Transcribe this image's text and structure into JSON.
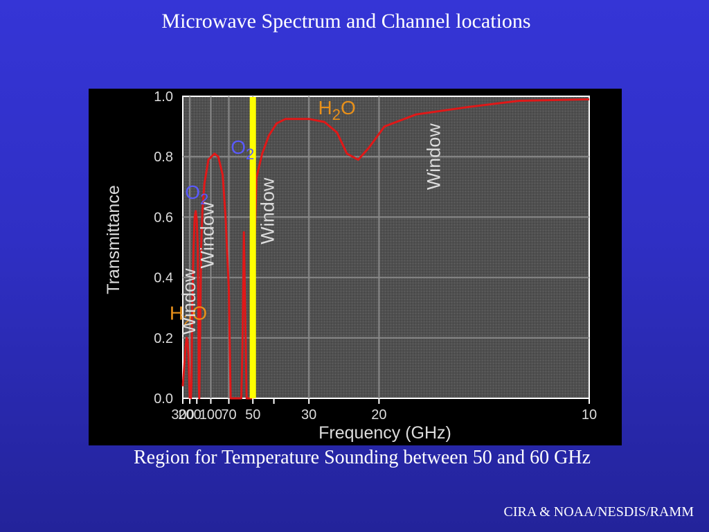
{
  "slide": {
    "title": "Microwave Spectrum and Channel locations",
    "caption": "Region for Temperature Sounding between 50 and 60 GHz",
    "credit": "CIRA & NOAA/NESDIS/RAMM"
  },
  "chart_data": {
    "type": "line",
    "xlabel": "Frequency (GHz)",
    "ylabel": "Transmittance",
    "x_scale": "reciprocal",
    "x_reversed": true,
    "xlim": [
      300,
      10
    ],
    "ylim": [
      0.0,
      1.0
    ],
    "grid": true,
    "x_ticks": [
      300,
      200,
      100,
      70,
      50,
      30,
      20,
      10
    ],
    "x_tick_labels": [
      "300",
      "200",
      "100",
      "70",
      "50",
      "30",
      "20",
      "10"
    ],
    "x_minor_ticks": [
      150,
      40
    ],
    "y_ticks": [
      0.0,
      0.2,
      0.4,
      0.6,
      0.8,
      1.0
    ],
    "y_tick_labels": [
      "0.0",
      "0.2",
      "0.4",
      "0.6",
      "0.8",
      "1.0"
    ],
    "series": [
      {
        "color": "#e01818",
        "points": [
          [
            300,
            0.04
          ],
          [
            270,
            0.11
          ],
          [
            250,
            0.17
          ],
          [
            235,
            0.2
          ],
          [
            225,
            0.195
          ],
          [
            215,
            0.15
          ],
          [
            205,
            0.05
          ],
          [
            200,
            0.0
          ],
          [
            190,
            0.0
          ],
          [
            185,
            0.05
          ],
          [
            180,
            0.28
          ],
          [
            170,
            0.5
          ],
          [
            162,
            0.6
          ],
          [
            156,
            0.62
          ],
          [
            150,
            0.59
          ],
          [
            145,
            0.5
          ],
          [
            142,
            0.3
          ],
          [
            140,
            0.05
          ],
          [
            138,
            0.0
          ],
          [
            136,
            0.1
          ],
          [
            130,
            0.5
          ],
          [
            125,
            0.62
          ],
          [
            118,
            0.71
          ],
          [
            106,
            0.79
          ],
          [
            92,
            0.81
          ],
          [
            85,
            0.8
          ],
          [
            78,
            0.74
          ],
          [
            74,
            0.6
          ],
          [
            70,
            0.36
          ],
          [
            68,
            0.0
          ],
          [
            62,
            0.0
          ],
          [
            58,
            0.0
          ],
          [
            57,
            0.18
          ],
          [
            56,
            0.55
          ],
          [
            54,
            0.0
          ],
          [
            52,
            0.0
          ],
          [
            50,
            0.0
          ],
          [
            49,
            0.5
          ],
          [
            48,
            0.73
          ],
          [
            45,
            0.81
          ],
          [
            42,
            0.87
          ],
          [
            39,
            0.91
          ],
          [
            36,
            0.925
          ],
          [
            30,
            0.925
          ],
          [
            27,
            0.915
          ],
          [
            25,
            0.88
          ],
          [
            23.6,
            0.81
          ],
          [
            22.2,
            0.79
          ],
          [
            21,
            0.83
          ],
          [
            19.5,
            0.9
          ],
          [
            17,
            0.94
          ],
          [
            14,
            0.965
          ],
          [
            12,
            0.985
          ],
          [
            10,
            0.99
          ]
        ]
      }
    ],
    "highlight_line": {
      "x": 50,
      "color": "#ffff00"
    },
    "annotations": [
      {
        "text": "H",
        "sub": "2",
        "rest": "O",
        "x": 215,
        "y": 0.26,
        "color": "#e8901a",
        "rotation": 0
      },
      {
        "text": "O",
        "sub": "2",
        "rest": "",
        "x": 150,
        "y": 0.66,
        "color": "#5a5aff",
        "rotation": 0
      },
      {
        "text": "O",
        "sub": "2",
        "rest": "",
        "x": 57,
        "y": 0.81,
        "color": "#5a5aff",
        "rotation": 0
      },
      {
        "text": "H",
        "sub": "2",
        "rest": "O",
        "x": 25,
        "y": 0.94,
        "color": "#e8901a",
        "rotation": 0
      },
      {
        "text": "Window",
        "x": 158,
        "y": 0.32,
        "color": "#dcdcdc",
        "rotation": -90
      },
      {
        "text": "Window",
        "x": 94,
        "y": 0.54,
        "color": "#dcdcdc",
        "rotation": -90
      },
      {
        "text": "Window",
        "x": 40,
        "y": 0.62,
        "color": "#dcdcdc",
        "rotation": -90
      },
      {
        "text": "Window",
        "x": 15.5,
        "y": 0.8,
        "color": "#dcdcdc",
        "rotation": -90
      }
    ]
  }
}
